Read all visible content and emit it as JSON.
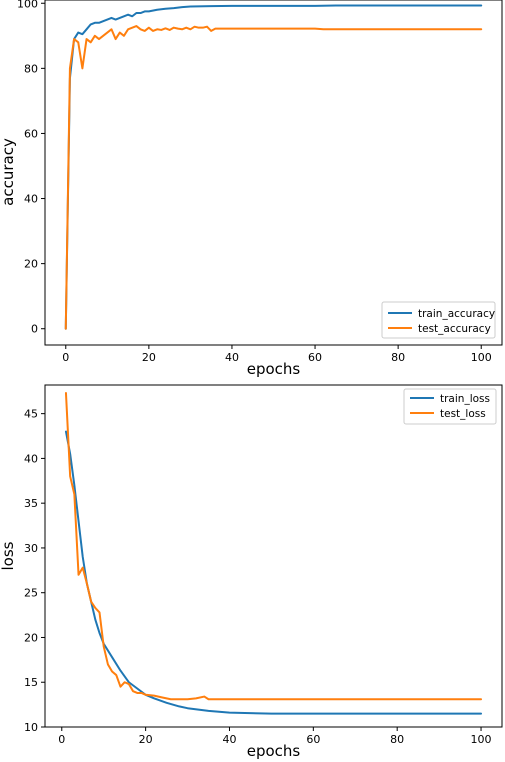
{
  "chart_data": [
    {
      "type": "line",
      "xlabel": "epochs",
      "ylabel": "accuracy",
      "xlim": [
        -5,
        105
      ],
      "ylim": [
        -5,
        101
      ],
      "xticks": [
        0,
        20,
        40,
        60,
        80,
        100
      ],
      "yticks": [
        0,
        20,
        40,
        60,
        80,
        100
      ],
      "grid": false,
      "legend_position": "bottom-right",
      "series": [
        {
          "name": "train_accuracy",
          "color": "#1f77b4",
          "x": [
            0,
            1,
            2,
            3,
            4,
            5,
            6,
            7,
            8,
            9,
            10,
            11,
            12,
            13,
            14,
            15,
            16,
            17,
            18,
            19,
            20,
            22,
            24,
            26,
            28,
            30,
            35,
            40,
            50,
            60,
            65,
            70,
            80,
            90,
            100
          ],
          "values": [
            0,
            77,
            89,
            91,
            90.5,
            92,
            93.5,
            94,
            94,
            94.5,
            95,
            95.5,
            95,
            95.5,
            96,
            96.5,
            96,
            97,
            97,
            97.5,
            97.5,
            98,
            98.3,
            98.5,
            98.8,
            99,
            99.1,
            99.2,
            99.2,
            99.2,
            99.3,
            99.3,
            99.3,
            99.3,
            99.3
          ]
        },
        {
          "name": "test_accuracy",
          "color": "#ff7f0e",
          "x": [
            0,
            1,
            2,
            3,
            4,
            5,
            6,
            7,
            8,
            9,
            10,
            11,
            12,
            13,
            14,
            15,
            16,
            17,
            18,
            19,
            20,
            21,
            22,
            23,
            24,
            25,
            26,
            27,
            28,
            29,
            30,
            31,
            32,
            33,
            34,
            35,
            36,
            37,
            40,
            50,
            60,
            62,
            70,
            80,
            90,
            100
          ],
          "values": [
            0,
            80,
            89,
            88,
            80,
            89,
            88,
            90,
            89,
            90,
            91,
            92,
            89,
            91,
            90,
            92,
            92.5,
            93,
            92,
            91.5,
            92.5,
            91.5,
            92,
            91.8,
            92.3,
            91.8,
            92.5,
            92.2,
            92,
            92.5,
            92,
            92.8,
            92.5,
            92.5,
            92.8,
            91.5,
            92.2,
            92.2,
            92.2,
            92.2,
            92.2,
            92,
            92,
            92,
            92,
            92
          ]
        }
      ]
    },
    {
      "type": "line",
      "xlabel": "epochs",
      "ylabel": "loss",
      "xlim": [
        -4,
        105
      ],
      "ylim": [
        10,
        48.2
      ],
      "xticks": [
        0,
        20,
        40,
        60,
        80,
        100
      ],
      "yticks": [
        10,
        15,
        20,
        25,
        30,
        35,
        40,
        45
      ],
      "grid": false,
      "legend_position": "top-right",
      "series": [
        {
          "name": "train_loss",
          "color": "#1f77b4",
          "x": [
            1,
            2,
            3,
            4,
            5,
            6,
            7,
            8,
            9,
            10,
            12,
            14,
            16,
            18,
            20,
            22,
            25,
            28,
            30,
            35,
            40,
            50,
            60,
            70,
            80,
            90,
            100
          ],
          "values": [
            43,
            40.5,
            37,
            33,
            29,
            26,
            24,
            22,
            20.5,
            19.3,
            17.8,
            16.3,
            15,
            14.3,
            13.6,
            13.2,
            12.7,
            12.3,
            12.1,
            11.8,
            11.6,
            11.5,
            11.5,
            11.5,
            11.5,
            11.5,
            11.5
          ]
        },
        {
          "name": "test_loss",
          "color": "#ff7f0e",
          "x": [
            1,
            2,
            3,
            4,
            5,
            6,
            7,
            8,
            9,
            10,
            11,
            12,
            13,
            14,
            15,
            16,
            17,
            18,
            19,
            20,
            22,
            24,
            26,
            28,
            30,
            32,
            34,
            35,
            36,
            40,
            50,
            60,
            70,
            80,
            90,
            100
          ],
          "values": [
            47.3,
            38,
            36,
            27,
            27.8,
            26,
            24,
            23.3,
            22.8,
            19,
            17,
            16.2,
            15.8,
            14.5,
            15,
            14.8,
            14,
            13.8,
            13.8,
            13.6,
            13.5,
            13.3,
            13.1,
            13.1,
            13.1,
            13.2,
            13.4,
            13.1,
            13.1,
            13.1,
            13.1,
            13.1,
            13.1,
            13.1,
            13.1,
            13.1
          ]
        }
      ]
    }
  ]
}
